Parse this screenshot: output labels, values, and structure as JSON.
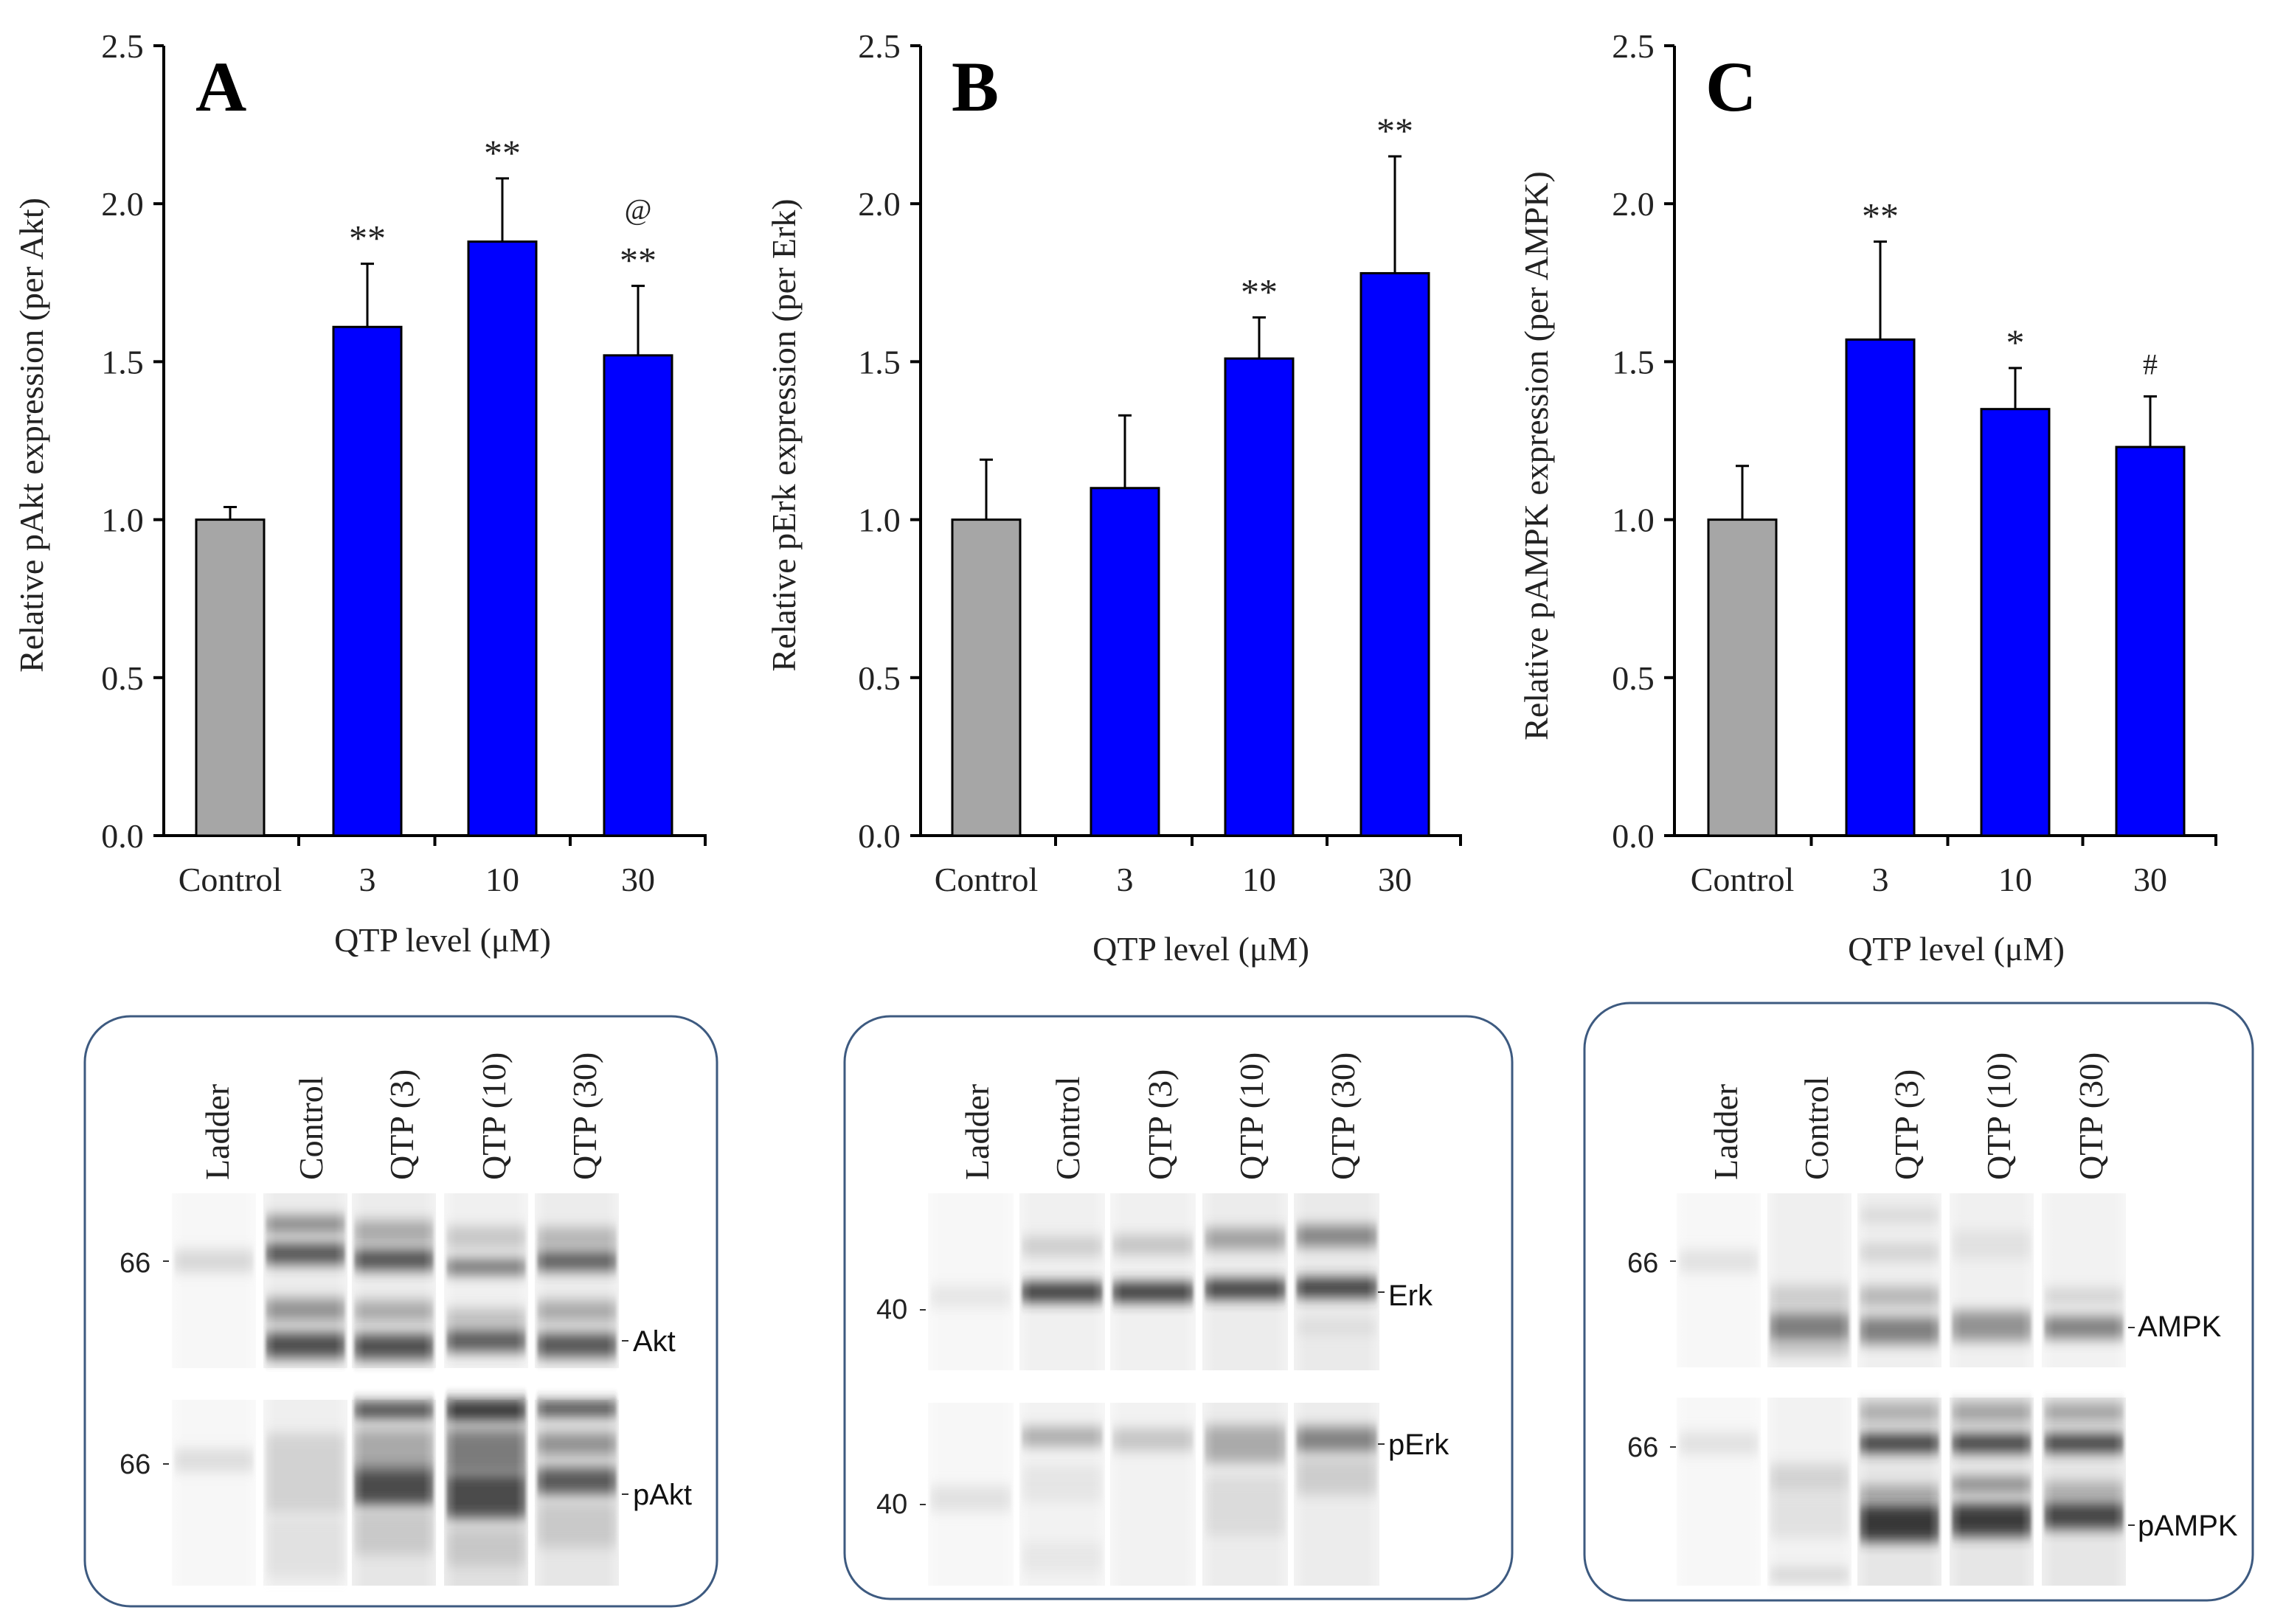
{
  "chart_data": [
    {
      "type": "bar",
      "panel_letter": "A",
      "categories": [
        "Control",
        "3",
        "10",
        "30"
      ],
      "values": [
        1.0,
        1.61,
        1.88,
        1.52
      ],
      "errors": [
        0.04,
        0.2,
        0.2,
        0.22
      ],
      "bar_colors": [
        "#a6a6a6",
        "#0000ff",
        "#0000ff",
        "#0000ff"
      ],
      "annotations": [
        [],
        [
          "**"
        ],
        [
          "**"
        ],
        [
          "**",
          "@"
        ]
      ],
      "xlabel": "QTP level  (μM)",
      "ylabel": "Relative pAkt expression (per Akt)",
      "ylim": [
        0,
        2.5
      ],
      "yticks": [
        "0.0",
        "0.5",
        "1.0",
        "1.5",
        "2.0",
        "2.5"
      ],
      "grid": false
    },
    {
      "type": "bar",
      "panel_letter": "B",
      "categories": [
        "Control",
        "3",
        "10",
        "30"
      ],
      "values": [
        1.0,
        1.1,
        1.51,
        1.78
      ],
      "errors": [
        0.19,
        0.23,
        0.13,
        0.37
      ],
      "bar_colors": [
        "#a6a6a6",
        "#0000ff",
        "#0000ff",
        "#0000ff"
      ],
      "annotations": [
        [],
        [],
        [
          "**"
        ],
        [
          "**"
        ]
      ],
      "xlabel": "QTP level  (μM)",
      "ylabel": "Relative pErk expression (per Erk)",
      "ylim": [
        0,
        2.5
      ],
      "yticks": [
        "0.0",
        "0.5",
        "1.0",
        "1.5",
        "2.0",
        "2.5"
      ],
      "grid": false
    },
    {
      "type": "bar",
      "panel_letter": "C",
      "categories": [
        "Control",
        "3",
        "10",
        "30"
      ],
      "values": [
        1.0,
        1.57,
        1.35,
        1.23
      ],
      "errors": [
        0.17,
        0.31,
        0.13,
        0.16
      ],
      "bar_colors": [
        "#a6a6a6",
        "#0000ff",
        "#0000ff",
        "#0000ff"
      ],
      "annotations": [
        [],
        [
          "**"
        ],
        [
          "*"
        ],
        [
          "#"
        ]
      ],
      "xlabel": "QTP level  (μM)",
      "ylabel": "Relative pAMPK expression (per AMPK)",
      "ylim": [
        0,
        2.5
      ],
      "yticks": [
        "0.0",
        "0.5",
        "1.0",
        "1.5",
        "2.0",
        "2.5"
      ],
      "grid": false
    }
  ],
  "blots": [
    {
      "lanes": [
        "Ladder",
        "Control",
        "QTP (3)",
        "QTP (10)",
        "QTP (30)"
      ],
      "marker_top": "66",
      "marker_bottom": "66",
      "label_top": "Akt",
      "label_bottom": "pAkt"
    },
    {
      "lanes": [
        "Ladder",
        "Control",
        "QTP (3)",
        "QTP (10)",
        "QTP (30)"
      ],
      "marker_top": "40",
      "marker_bottom": "40",
      "label_top": "Erk",
      "label_bottom": "pErk"
    },
    {
      "lanes": [
        "Ladder",
        "Control",
        "QTP (3)",
        "QTP (10)",
        "QTP (30)"
      ],
      "marker_top": "66",
      "marker_bottom": "66",
      "label_top": "AMPK",
      "label_bottom": "pAMPK"
    }
  ]
}
